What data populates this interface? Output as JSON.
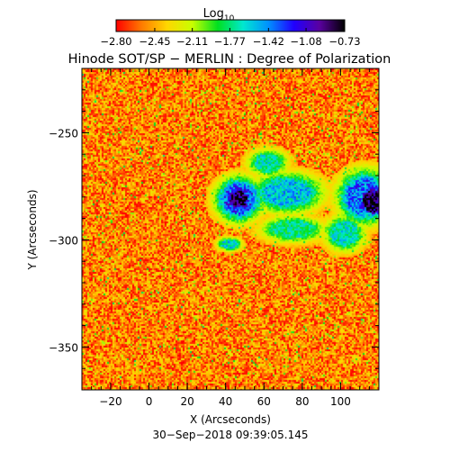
{
  "chart_data": {
    "type": "heatmap",
    "title": "Hinode SOT/SP − MERLIN : Degree of Polarization",
    "colorbar": {
      "label_base": "Log",
      "label_sub": "10",
      "ticks": [
        "−2.80",
        "−2.45",
        "−2.11",
        "−1.77",
        "−1.42",
        "−1.08",
        "−0.73"
      ],
      "range": [
        -2.8,
        -0.73
      ],
      "colors": [
        "#ff0000",
        "#ff7a00",
        "#ffd600",
        "#c8ff00",
        "#00e020",
        "#00e8d0",
        "#0090ff",
        "#2000ff",
        "#5a00a0",
        "#000000"
      ]
    },
    "xlabel": "X (Arcseconds)",
    "ylabel": "Y (Arcseconds)",
    "xlim": [
      -35,
      120
    ],
    "ylim": [
      -370,
      -220
    ],
    "xticks": [
      {
        "value": -20,
        "label": "−20"
      },
      {
        "value": 0,
        "label": "0"
      },
      {
        "value": 20,
        "label": "20"
      },
      {
        "value": 40,
        "label": "40"
      },
      {
        "value": 60,
        "label": "60"
      },
      {
        "value": 80,
        "label": "80"
      },
      {
        "value": 100,
        "label": "100"
      }
    ],
    "yticks": [
      {
        "value": -250,
        "label": "−250"
      },
      {
        "value": -300,
        "label": "−300"
      },
      {
        "value": -350,
        "label": "−350"
      }
    ],
    "background_level": -2.55,
    "regions": [
      {
        "name": "sunspot-left",
        "x": 47,
        "y": -281,
        "rx": 6,
        "ry": 5,
        "level": -0.75
      },
      {
        "name": "penumbra-left",
        "x": 47,
        "y": -281,
        "rx": 12,
        "ry": 10,
        "level": -1.3
      },
      {
        "name": "sunspot-right",
        "x": 117,
        "y": -282,
        "rx": 7,
        "ry": 7,
        "level": -0.75
      },
      {
        "name": "penumbra-right",
        "x": 113,
        "y": -280,
        "rx": 14,
        "ry": 12,
        "level": -1.35
      },
      {
        "name": "plage-central",
        "x": 72,
        "y": -278,
        "rx": 18,
        "ry": 9,
        "level": -1.55
      },
      {
        "name": "plage-upper",
        "x": 62,
        "y": -264,
        "rx": 10,
        "ry": 6,
        "level": -1.7
      },
      {
        "name": "plage-lower",
        "x": 75,
        "y": -295,
        "rx": 16,
        "ry": 6,
        "level": -1.75
      },
      {
        "name": "plage-right-lower",
        "x": 102,
        "y": -297,
        "rx": 10,
        "ry": 8,
        "level": -1.65
      },
      {
        "name": "plage-left-lower",
        "x": 42,
        "y": -302,
        "rx": 6,
        "ry": 3,
        "level": -1.6
      }
    ],
    "timestamp": "30−Sep−2018 09:39:05.145"
  }
}
